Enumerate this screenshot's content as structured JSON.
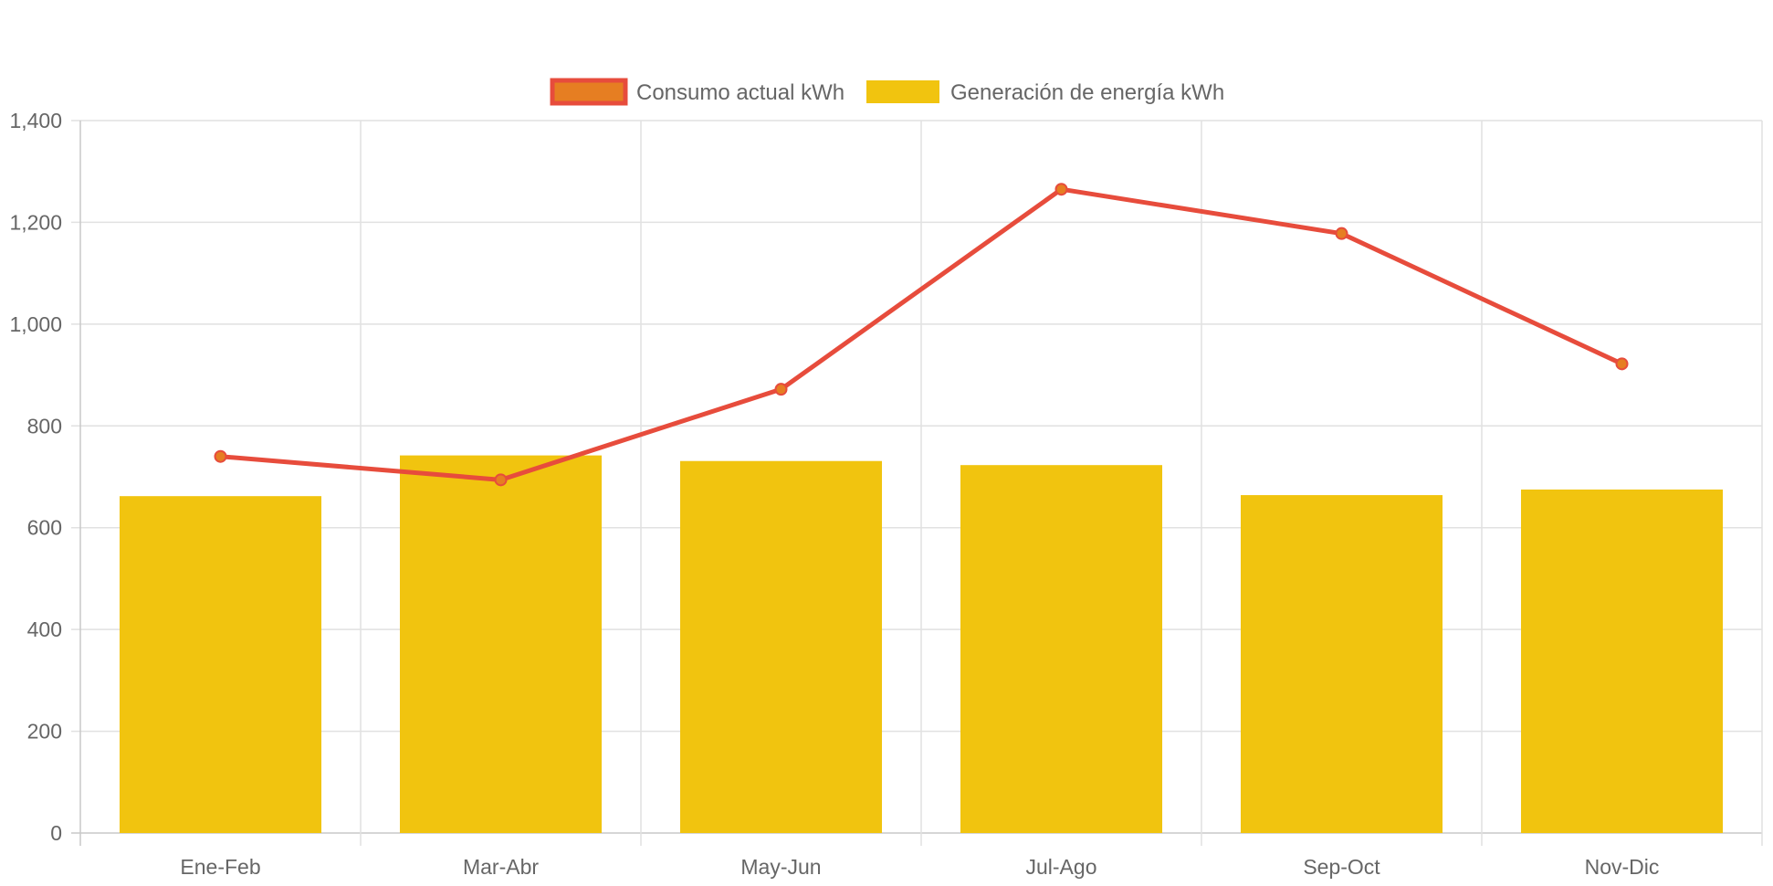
{
  "chart_data": {
    "type": "bar",
    "categories": [
      "Ene-Feb",
      "Mar-Abr",
      "May-Jun",
      "Jul-Ago",
      "Sep-Oct",
      "Nov-Dic"
    ],
    "series": [
      {
        "name": "Consumo actual kWh",
        "type": "line",
        "values": [
          740,
          694,
          872,
          1265,
          1178,
          922
        ],
        "color": "#e74c3c",
        "point_color": "#e67e22"
      },
      {
        "name": "Generación de energía kWh",
        "type": "bar",
        "values": [
          662,
          742,
          731,
          723,
          664,
          675
        ],
        "color": "#f1c40f"
      }
    ],
    "y_ticks": [
      "0",
      "200",
      "400",
      "600",
      "800",
      "1,000",
      "1,200",
      "1,400"
    ],
    "ylim": [
      0,
      1400
    ],
    "legend_position": "top",
    "grid": true
  }
}
